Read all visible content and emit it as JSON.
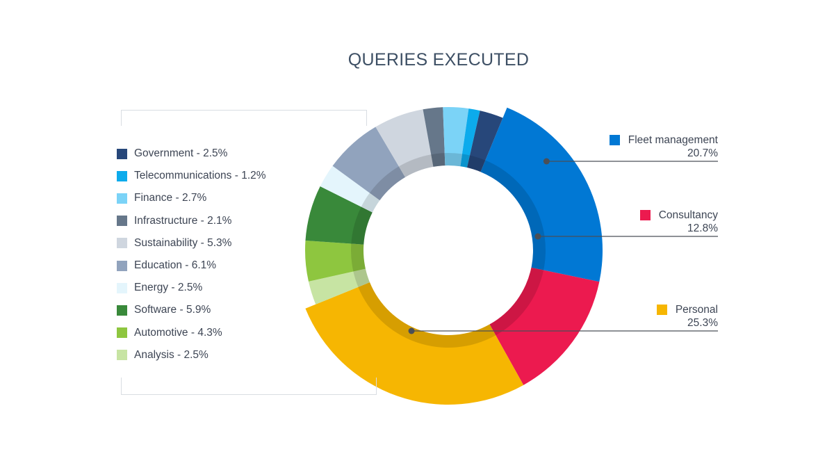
{
  "chart_data": {
    "type": "pie",
    "title": "QUERIES EXECUTED",
    "slices": [
      {
        "label": "Fleet management",
        "value": 20.7,
        "color": "#0178d4",
        "display": "20.7%",
        "callout": true
      },
      {
        "label": "Consultancy",
        "value": 12.8,
        "color": "#ec1a4f",
        "display": "12.8%",
        "callout": true
      },
      {
        "label": "Personal",
        "value": 25.3,
        "color": "#f6b602",
        "display": "25.3%",
        "callout": true
      },
      {
        "label": "Analysis",
        "value": 2.5,
        "color": "#c7e4a3",
        "display": "2.5%",
        "callout": false
      },
      {
        "label": "Automotive",
        "value": 4.3,
        "color": "#8ec63f",
        "display": "4.3%",
        "callout": false
      },
      {
        "label": "Software",
        "value": 5.9,
        "color": "#39893a",
        "display": "5.9%",
        "callout": false
      },
      {
        "label": "Energy",
        "value": 2.5,
        "color": "#e4f5fc",
        "display": "2.5%",
        "callout": false
      },
      {
        "label": "Education",
        "value": 6.1,
        "color": "#91a3bd",
        "display": "6.1%",
        "callout": false
      },
      {
        "label": "Sustainability",
        "value": 5.3,
        "color": "#cfd6df",
        "display": "5.3%",
        "callout": false
      },
      {
        "label": "Infrastructure",
        "value": 2.1,
        "color": "#66778a",
        "display": "2.1%",
        "callout": false
      },
      {
        "label": "Finance",
        "value": 2.7,
        "color": "#7bd3f7",
        "display": "2.7%",
        "callout": false
      },
      {
        "label": "Telecommunications",
        "value": 1.2,
        "color": "#0cabec",
        "display": "1.2%",
        "callout": false
      },
      {
        "label": "Government",
        "value": 2.5,
        "color": "#27477a",
        "display": "2.5%",
        "callout": false
      }
    ],
    "legend_order": [
      "Government",
      "Telecommunications",
      "Finance",
      "Infrastructure",
      "Sustainability",
      "Education",
      "Energy",
      "Software",
      "Automotive",
      "Analysis"
    ],
    "callout_order": [
      "Fleet management",
      "Consultancy",
      "Personal"
    ]
  }
}
